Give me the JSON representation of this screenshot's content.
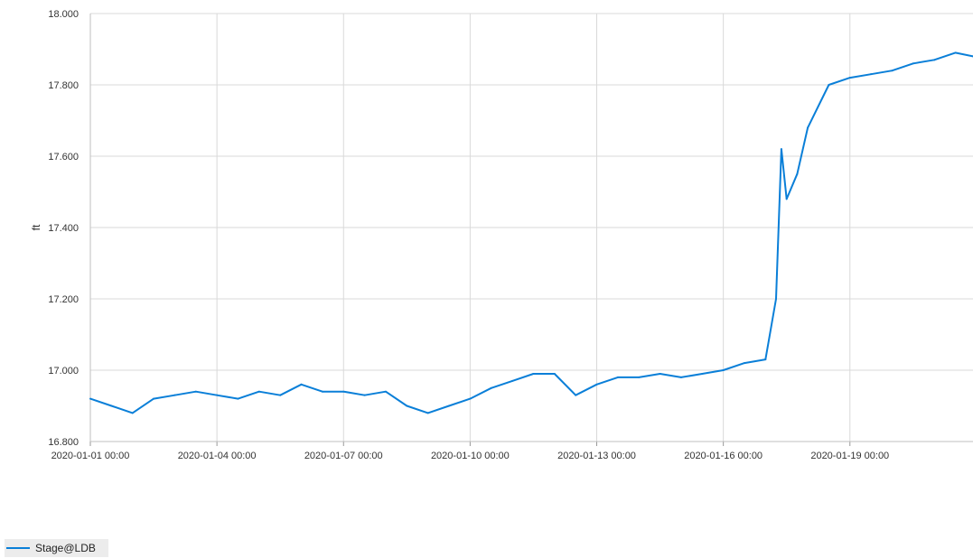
{
  "chart_data": {
    "type": "line",
    "title": "",
    "xlabel": "",
    "ylabel": "ft",
    "ylim": [
      16.8,
      18.0
    ],
    "xlim": [
      "2020-01-01 00:00",
      "2020-01-21 22:00"
    ],
    "grid": true,
    "legend_position": "bottom-left",
    "y_ticks": [
      "16.800",
      "17.000",
      "17.200",
      "17.400",
      "17.600",
      "17.800",
      "18.000"
    ],
    "x_ticks": [
      "2020-01-01 00:00",
      "2020-01-04 00:00",
      "2020-01-07 00:00",
      "2020-01-10 00:00",
      "2020-01-13 00:00",
      "2020-01-16 00:00",
      "2020-01-19 00:00"
    ],
    "series": [
      {
        "name": "Stage@LDB",
        "color": "#0a7fd8",
        "x": [
          "2020-01-01 00:00",
          "2020-01-01 12:00",
          "2020-01-02 00:00",
          "2020-01-02 12:00",
          "2020-01-03 00:00",
          "2020-01-03 12:00",
          "2020-01-04 00:00",
          "2020-01-04 12:00",
          "2020-01-05 00:00",
          "2020-01-05 12:00",
          "2020-01-06 00:00",
          "2020-01-06 12:00",
          "2020-01-07 00:00",
          "2020-01-07 12:00",
          "2020-01-08 00:00",
          "2020-01-08 12:00",
          "2020-01-09 00:00",
          "2020-01-09 12:00",
          "2020-01-10 00:00",
          "2020-01-10 12:00",
          "2020-01-11 00:00",
          "2020-01-11 12:00",
          "2020-01-12 00:00",
          "2020-01-12 12:00",
          "2020-01-13 00:00",
          "2020-01-13 12:00",
          "2020-01-14 00:00",
          "2020-01-14 12:00",
          "2020-01-15 00:00",
          "2020-01-15 12:00",
          "2020-01-16 00:00",
          "2020-01-16 12:00",
          "2020-01-17 00:00",
          "2020-01-17 06:00",
          "2020-01-17 09:00",
          "2020-01-17 12:00",
          "2020-01-17 18:00",
          "2020-01-18 00:00",
          "2020-01-18 12:00",
          "2020-01-19 00:00",
          "2020-01-19 12:00",
          "2020-01-20 00:00",
          "2020-01-20 12:00",
          "2020-01-21 00:00",
          "2020-01-21 12:00",
          "2020-01-21 22:00"
        ],
        "values": [
          16.92,
          16.9,
          16.88,
          16.92,
          16.93,
          16.94,
          16.93,
          16.92,
          16.94,
          16.93,
          16.96,
          16.94,
          16.94,
          16.93,
          16.94,
          16.9,
          16.88,
          16.9,
          16.92,
          16.95,
          16.97,
          16.99,
          16.99,
          16.93,
          16.96,
          16.98,
          16.98,
          16.99,
          16.98,
          16.99,
          17.0,
          17.02,
          17.03,
          17.2,
          17.62,
          17.48,
          17.55,
          17.68,
          17.8,
          17.82,
          17.83,
          17.84,
          17.86,
          17.87,
          17.89,
          17.88
        ]
      }
    ]
  },
  "legend": {
    "items": [
      {
        "label": "Stage@LDB",
        "color": "#0a7fd8"
      }
    ]
  }
}
